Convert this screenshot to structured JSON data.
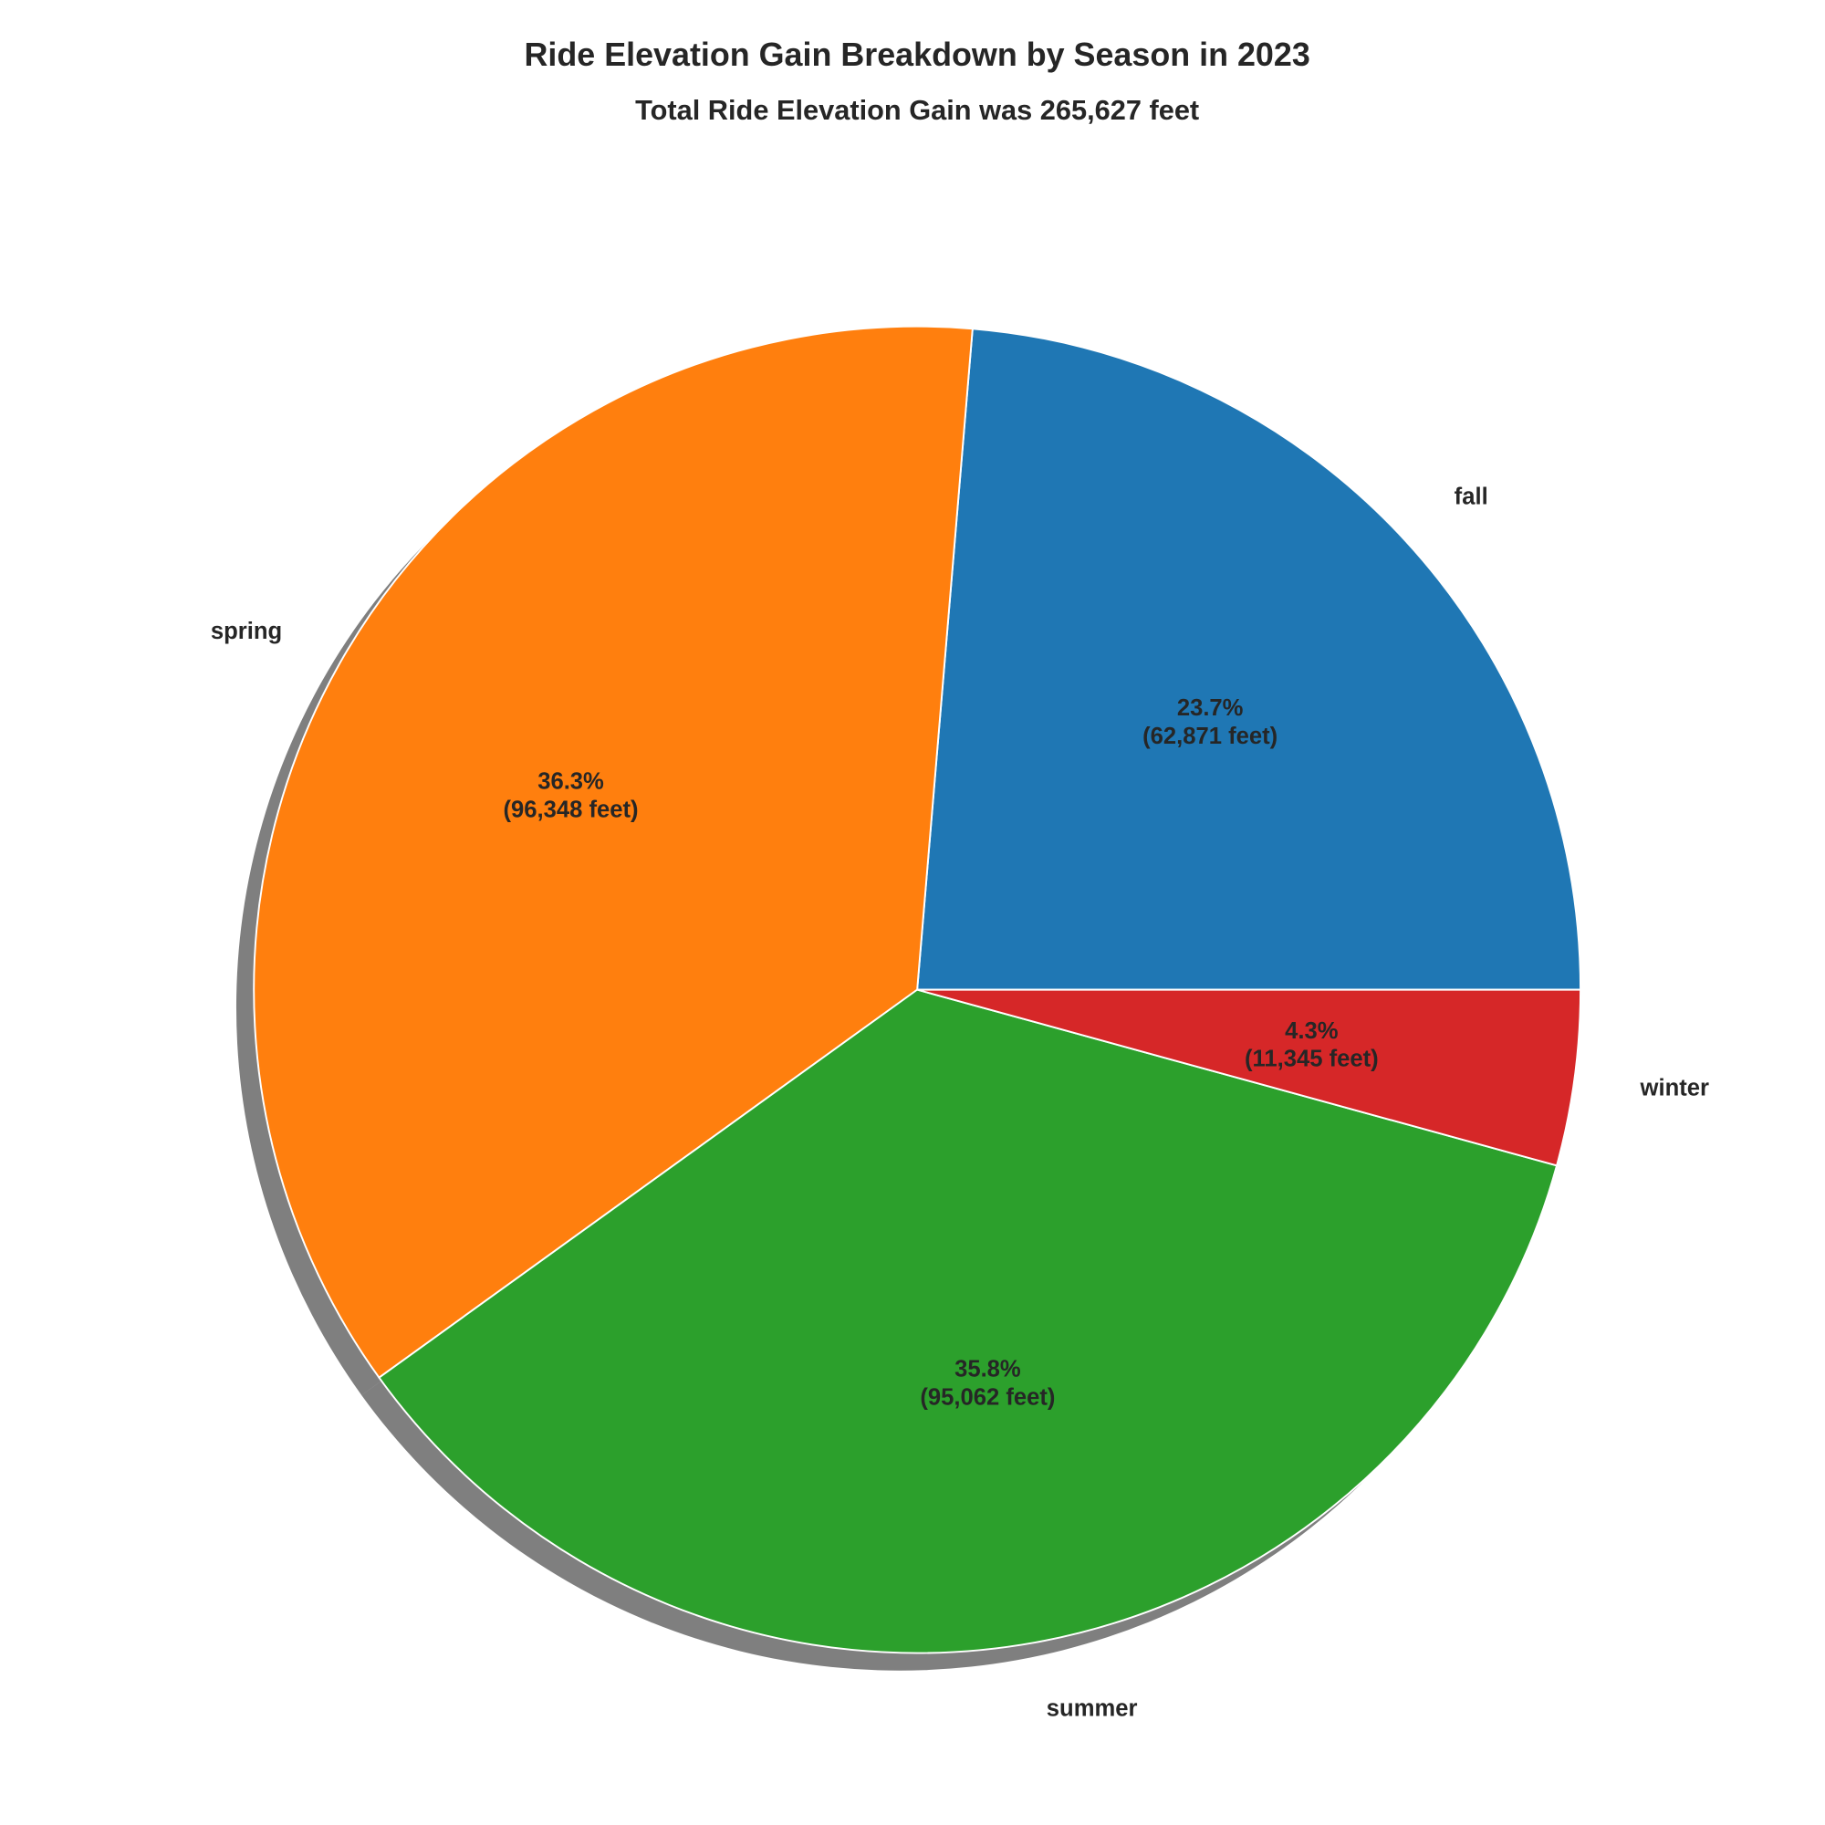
{
  "chart_data": {
    "type": "pie",
    "title": "Ride Elevation Gain Breakdown by Season in 2023",
    "subtitle": "Total Ride Elevation Gain was 265,627 feet",
    "start_angle_deg": 0,
    "direction": "counterclockwise",
    "shadow": true,
    "slices": [
      {
        "label": "fall",
        "value": 62871,
        "pct_label": "23.7%",
        "value_label": "(62,871 feet)",
        "color": "#1f77b4"
      },
      {
        "label": "spring",
        "value": 96348,
        "pct_label": "36.3%",
        "value_label": "(96,348 feet)",
        "color": "#ff7f0e"
      },
      {
        "label": "summer",
        "value": 95062,
        "pct_label": "35.8%",
        "value_label": "(95,062 feet)",
        "color": "#2ca02c"
      },
      {
        "label": "winter",
        "value": 11345,
        "pct_label": "4.3%",
        "value_label": "(11,345 feet)",
        "color": "#d62728"
      }
    ]
  }
}
